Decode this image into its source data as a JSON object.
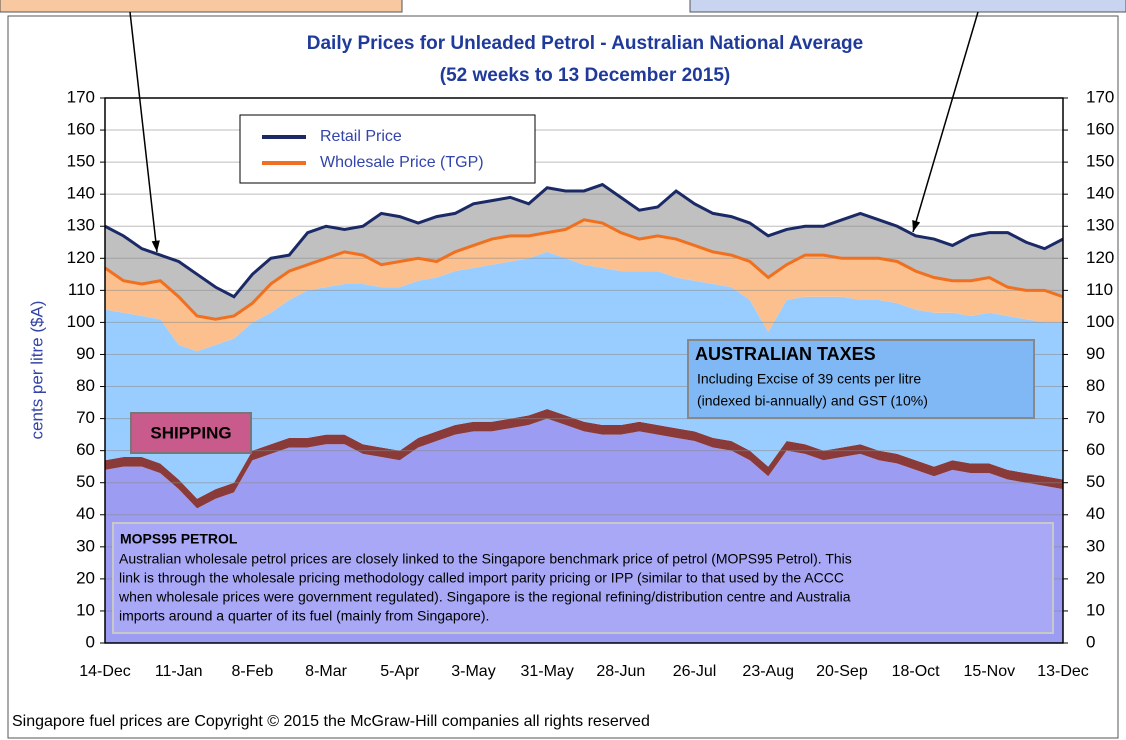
{
  "chart_data": {
    "type": "stacked-area",
    "title": [
      "Daily Prices for Unleaded Petrol - Australian National Average",
      "(52 weeks to 13 December 2015)"
    ],
    "y_label": "cents per litre ($A)",
    "categories": [
      "14-Dec",
      null,
      null,
      null,
      "11-Jan",
      null,
      null,
      null,
      "8-Feb",
      null,
      null,
      null,
      "8-Mar",
      null,
      null,
      null,
      "5-Apr",
      null,
      null,
      null,
      "3-May",
      null,
      null,
      null,
      "31-May",
      null,
      null,
      null,
      "28-Jun",
      null,
      null,
      null,
      "26-Jul",
      null,
      null,
      null,
      "23-Aug",
      null,
      null,
      null,
      "20-Sep",
      null,
      null,
      null,
      "18-Oct",
      null,
      null,
      null,
      "15-Nov",
      null,
      null,
      null,
      "13-Dec"
    ],
    "layers": [
      {
        "color": "#9c9cf2",
        "values": [
          54,
          55,
          55,
          53,
          48,
          42,
          45,
          47,
          57,
          59,
          61,
          61,
          62,
          62,
          59,
          58,
          57,
          61,
          63,
          65,
          66,
          66,
          67,
          68,
          70,
          68,
          66,
          65,
          65,
          66,
          65,
          64,
          63,
          61,
          60,
          57,
          52,
          60,
          59,
          57,
          58,
          59,
          57,
          56,
          54,
          52,
          54,
          53,
          53,
          51,
          50,
          49,
          48
        ]
      },
      {
        "color": "#8b3a3a",
        "values": [
          3,
          3,
          3,
          3,
          3,
          3,
          3,
          3,
          3,
          3,
          3,
          3,
          3,
          3,
          3,
          3,
          3,
          3,
          3,
          3,
          3,
          3,
          3,
          3,
          3,
          3,
          3,
          3,
          3,
          3,
          3,
          3,
          3,
          3,
          3,
          3,
          3,
          3,
          3,
          3,
          3,
          3,
          3,
          3,
          3,
          3,
          3,
          3,
          3,
          3,
          3,
          3,
          3
        ]
      },
      {
        "color": "#99ccff",
        "values": [
          47,
          45,
          44,
          45,
          42,
          46,
          45,
          45,
          40,
          41,
          43,
          46,
          46,
          47,
          50,
          50,
          51,
          49,
          48,
          48,
          48,
          49,
          49,
          49,
          49,
          49,
          49,
          49,
          48,
          47,
          48,
          47,
          47,
          48,
          48,
          47,
          42,
          44,
          46,
          48,
          47,
          45,
          47,
          47,
          47,
          48,
          46,
          46,
          47,
          48,
          48,
          48,
          49
        ]
      }
    ],
    "series": [
      {
        "name": "Retail Price",
        "color": "#1b2a66",
        "fill": "#c0c0c0",
        "values": [
          130,
          127,
          123,
          121,
          119,
          115,
          111,
          108,
          115,
          120,
          121,
          128,
          130,
          129,
          130,
          134,
          133,
          131,
          133,
          134,
          137,
          138,
          139,
          137,
          142,
          141,
          141,
          143,
          139,
          135,
          136,
          141,
          137,
          134,
          133,
          131,
          127,
          129,
          130,
          130,
          132,
          134,
          132,
          130,
          127,
          126,
          124,
          127,
          128,
          128,
          125,
          123,
          126
        ]
      },
      {
        "name": "Wholesale Price (TGP)",
        "color": "#f07020",
        "fill": "#fbc08e",
        "values": [
          117,
          113,
          112,
          113,
          108,
          102,
          101,
          102,
          106,
          112,
          116,
          118,
          120,
          122,
          121,
          118,
          119,
          120,
          119,
          122,
          124,
          126,
          127,
          127,
          128,
          129,
          132,
          131,
          128,
          126,
          127,
          126,
          124,
          122,
          121,
          119,
          114,
          118,
          121,
          121,
          120,
          120,
          120,
          119,
          116,
          114,
          113,
          113,
          114,
          111,
          110,
          110,
          108
        ]
      }
    ],
    "ylim": [
      0,
      170
    ],
    "yticks": [
      0,
      10,
      20,
      30,
      40,
      50,
      60,
      70,
      80,
      90,
      100,
      110,
      120,
      130,
      140,
      150,
      160,
      170
    ],
    "y2lim": [
      0,
      170
    ],
    "y2ticks": [
      0,
      10,
      20,
      30,
      40,
      50,
      60,
      70,
      80,
      90,
      100,
      110,
      120,
      130,
      140,
      150,
      160,
      170
    ],
    "grid": true,
    "annotations": {
      "taxes": {
        "title": "AUSTRALIAN TAXES",
        "lines": [
          "Including Excise of 39 cents per litre",
          "(indexed bi-annually) and GST (10%)"
        ]
      },
      "shipping": "SHIPPING",
      "mops": {
        "title": "MOPS95 PETROL",
        "lines": [
          "Australian wholesale petrol prices are closely linked to the Singapore benchmark price of petrol (MOPS95 Petrol).  This",
          "link is through the wholesale pricing methodology called import parity pricing or IPP (similar to that used by the ACCC",
          "when wholesale prices were government regulated). Singapore is the regional refining/distribution centre and Australia",
          "imports around a quarter of its fuel (mainly from Singapore)."
        ]
      }
    },
    "footer": "Singapore fuel prices are Copyright © 2015 the McGraw-Hill companies all rights reserved"
  }
}
